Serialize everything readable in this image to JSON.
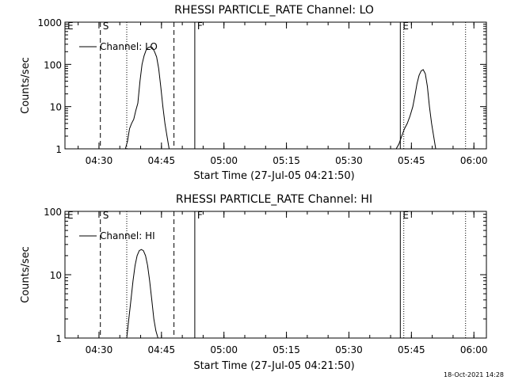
{
  "footer_date": "18-Oct-2021 14:28",
  "chart_data": [
    {
      "type": "line",
      "title": "RHESSI PARTICLE_RATE Channel: LO",
      "xlabel": "Start Time (27-Jul-05 04:21:50)",
      "ylabel": "Counts/sec",
      "y_scale": "log",
      "ylim": [
        1,
        1000
      ],
      "xlim": [
        "04:21:50",
        "06:03:00"
      ],
      "x_ticks": [
        "04:30",
        "04:45",
        "05:00",
        "05:15",
        "05:30",
        "05:45",
        "06:00"
      ],
      "y_ticks": [
        "1",
        "10",
        "100",
        "1000"
      ],
      "legend": "Channel: LO",
      "markers": [
        {
          "label": "E",
          "time": "04:21:50",
          "style": "solid"
        },
        {
          "label": "S",
          "time": "04:30:20",
          "style": "dashed"
        },
        {
          "label": "",
          "time": "04:36:40",
          "style": "dotted"
        },
        {
          "label": "",
          "time": "04:48:00",
          "style": "dashed"
        },
        {
          "label": "F",
          "time": "04:53:00",
          "style": "solid"
        },
        {
          "label": "E",
          "time": "05:42:20",
          "style": "solid"
        },
        {
          "label": "",
          "time": "05:43:10",
          "style": "dotted"
        },
        {
          "label": "",
          "time": "05:58:00",
          "style": "dotted"
        }
      ],
      "series": [
        {
          "x": [
            "04:36:20",
            "04:36:50",
            "04:37:20",
            "04:37:50",
            "04:38:20",
            "04:38:50",
            "04:39:20",
            "04:39:50",
            "04:40:20",
            "04:40:50",
            "04:41:20",
            "04:41:50",
            "04:42:20",
            "04:42:50",
            "04:43:20",
            "04:43:50",
            "04:44:20",
            "04:44:50",
            "04:45:20",
            "04:45:50",
            "04:46:20",
            "04:46:50"
          ],
          "y": [
            1,
            1.5,
            3,
            4,
            5,
            8,
            12,
            40,
            100,
            160,
            220,
            250,
            260,
            250,
            200,
            150,
            80,
            30,
            10,
            4,
            2,
            1
          ]
        },
        {
          "x": [
            "05:41:20",
            "05:42:00",
            "05:42:40",
            "05:43:20",
            "05:44:00",
            "05:44:40",
            "05:45:20",
            "05:45:50",
            "05:46:20",
            "05:46:50",
            "05:47:20",
            "05:47:50",
            "05:48:20",
            "05:48:50",
            "05:49:20",
            "05:49:50",
            "05:50:20",
            "05:50:50"
          ],
          "y": [
            1,
            1.3,
            2,
            3,
            4,
            6,
            10,
            18,
            35,
            55,
            70,
            75,
            60,
            30,
            10,
            4,
            2,
            1
          ]
        }
      ]
    },
    {
      "type": "line",
      "title": "RHESSI PARTICLE_RATE Channel: HI",
      "xlabel": "Start Time (27-Jul-05 04:21:50)",
      "ylabel": "Counts/sec",
      "y_scale": "log",
      "ylim": [
        1,
        100
      ],
      "xlim": [
        "04:21:50",
        "06:03:00"
      ],
      "x_ticks": [
        "04:30",
        "04:45",
        "05:00",
        "05:15",
        "05:30",
        "05:45",
        "06:00"
      ],
      "y_ticks": [
        "1",
        "10",
        "100"
      ],
      "legend": "Channel: HI",
      "markers": [
        {
          "label": "E",
          "time": "04:21:50",
          "style": "solid"
        },
        {
          "label": "S",
          "time": "04:30:20",
          "style": "dashed"
        },
        {
          "label": "",
          "time": "04:36:40",
          "style": "dotted"
        },
        {
          "label": "",
          "time": "04:48:00",
          "style": "dashed"
        },
        {
          "label": "F",
          "time": "04:53:00",
          "style": "solid"
        },
        {
          "label": "E",
          "time": "05:42:20",
          "style": "solid"
        },
        {
          "label": "",
          "time": "05:43:10",
          "style": "dotted"
        },
        {
          "label": "",
          "time": "05:58:00",
          "style": "dotted"
        }
      ],
      "series": [
        {
          "x": [
            "04:36:40",
            "04:37:10",
            "04:37:40",
            "04:38:10",
            "04:38:40",
            "04:39:10",
            "04:39:40",
            "04:40:10",
            "04:40:40",
            "04:41:10",
            "04:41:40",
            "04:42:10",
            "04:42:40",
            "04:43:10",
            "04:43:40",
            "04:44:10"
          ],
          "y": [
            1,
            2,
            4,
            8,
            14,
            20,
            24,
            25,
            24,
            20,
            14,
            8,
            4,
            2,
            1.3,
            1
          ]
        }
      ]
    }
  ]
}
